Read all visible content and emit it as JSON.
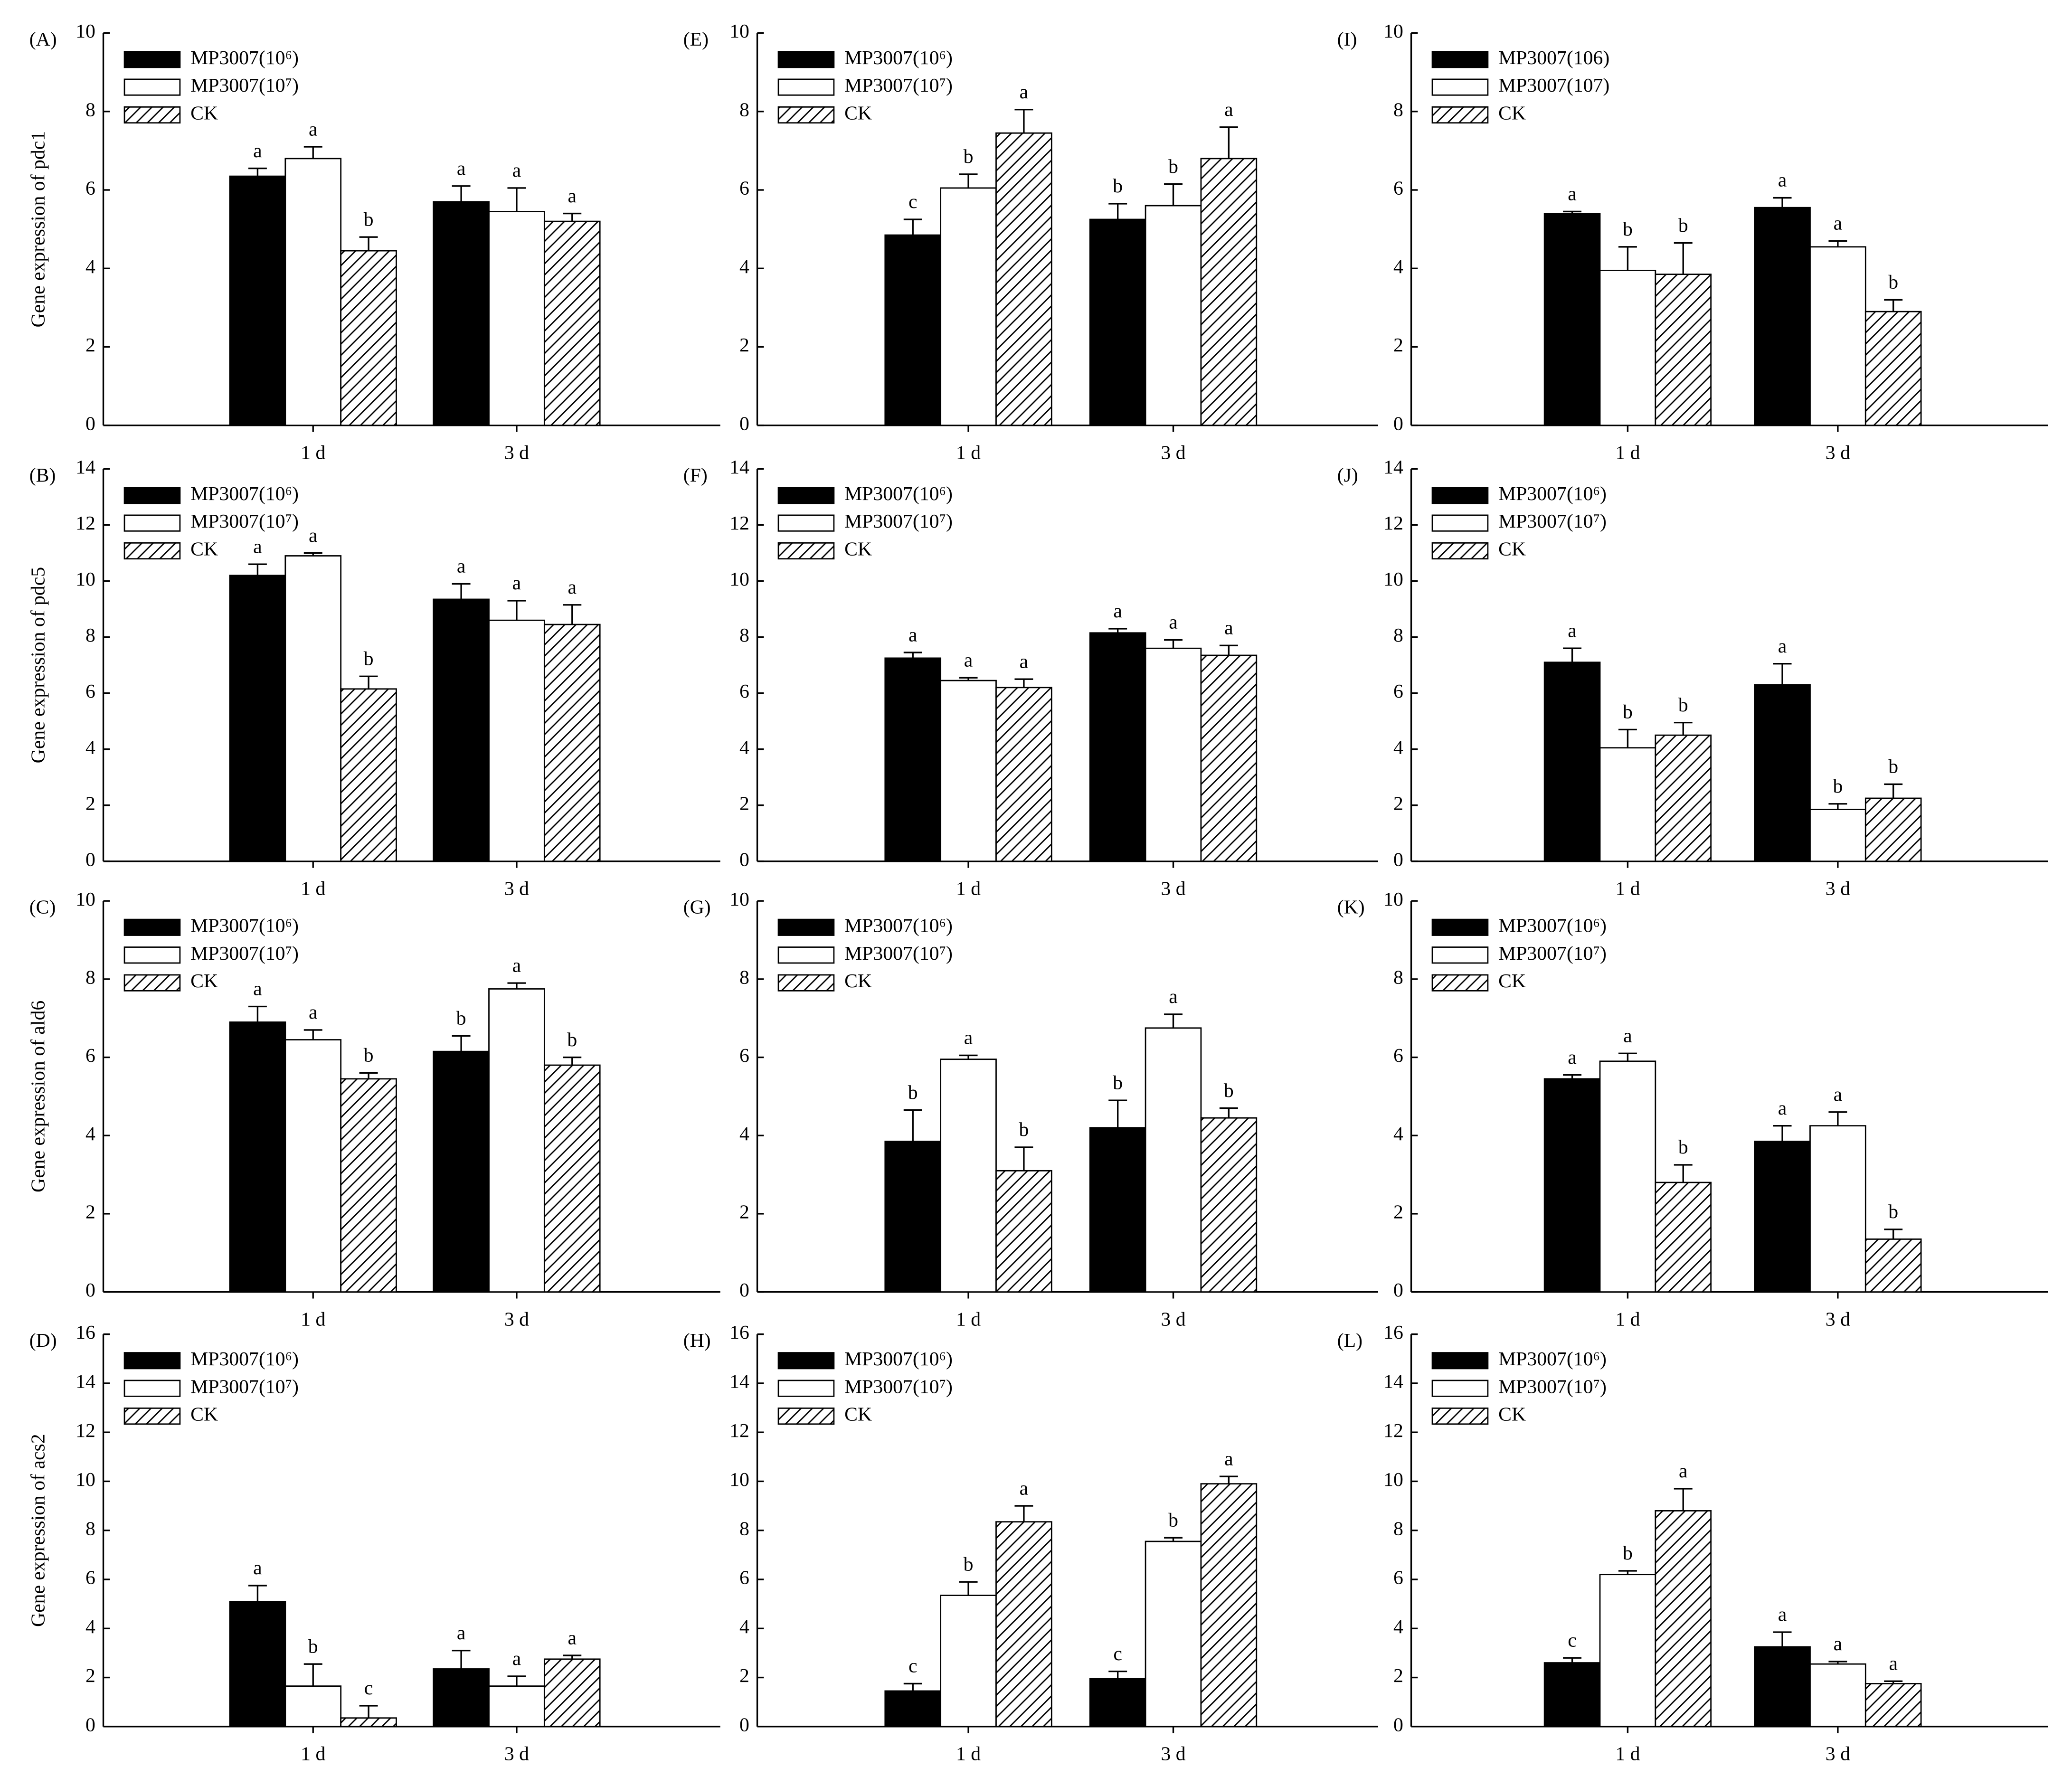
{
  "chart_data": [
    {
      "type": "bar",
      "panel": "(A)",
      "ylabel": "Gene expression of pdc1",
      "categories": [
        "1 d",
        "3 d"
      ],
      "ylim": [
        0,
        10
      ],
      "yticks": [
        0,
        2,
        4,
        6,
        8,
        10
      ],
      "series": [
        {
          "name": "MP3007(10⁶)",
          "color": "#000000",
          "values": [
            6.35,
            5.7
          ],
          "errors": [
            0.2,
            0.4
          ],
          "letters": [
            "a",
            "a"
          ]
        },
        {
          "name": "MP3007(10⁷)",
          "color": "#ffffff",
          "values": [
            6.8,
            5.45
          ],
          "errors": [
            0.3,
            0.6
          ],
          "letters": [
            "a",
            "a"
          ]
        },
        {
          "name": "CK",
          "color": "#ffffff",
          "pattern": "hatch",
          "values": [
            4.45,
            5.2
          ],
          "errors": [
            0.35,
            0.2
          ],
          "letters": [
            "b",
            "a"
          ]
        }
      ]
    },
    {
      "type": "bar",
      "panel": "(E)",
      "categories": [
        "1 d",
        "3 d"
      ],
      "ylim": [
        0,
        10
      ],
      "yticks": [
        0,
        2,
        4,
        6,
        8,
        10
      ],
      "series": [
        {
          "name": "MP3007(10⁶)",
          "color": "#000000",
          "values": [
            4.85,
            5.25
          ],
          "errors": [
            0.4,
            0.4
          ],
          "letters": [
            "c",
            "b"
          ]
        },
        {
          "name": "MP3007(10⁷)",
          "color": "#ffffff",
          "values": [
            6.05,
            5.6
          ],
          "errors": [
            0.35,
            0.55
          ],
          "letters": [
            "b",
            "b"
          ]
        },
        {
          "name": "CK",
          "color": "#ffffff",
          "pattern": "hatch",
          "values": [
            7.45,
            6.8
          ],
          "errors": [
            0.6,
            0.8
          ],
          "letters": [
            "a",
            "a"
          ]
        }
      ]
    },
    {
      "type": "bar",
      "panel": "(I)",
      "categories": [
        "1 d",
        "3 d"
      ],
      "ylim": [
        0,
        10
      ],
      "yticks": [
        0,
        2,
        4,
        6,
        8,
        10
      ],
      "series": [
        {
          "name": "MP3007(106)",
          "color": "#000000",
          "values": [
            5.4,
            5.55
          ],
          "errors": [
            0.05,
            0.25
          ],
          "letters": [
            "a",
            "a"
          ]
        },
        {
          "name": "MP3007(107)",
          "color": "#ffffff",
          "values": [
            3.95,
            4.55
          ],
          "errors": [
            0.6,
            0.15
          ],
          "letters": [
            "b",
            "a"
          ]
        },
        {
          "name": "CK",
          "color": "#ffffff",
          "pattern": "hatch",
          "values": [
            3.85,
            2.9
          ],
          "errors": [
            0.8,
            0.3
          ],
          "letters": [
            "b",
            "b"
          ]
        }
      ]
    },
    {
      "type": "bar",
      "panel": "(B)",
      "ylabel": "Gene expression of pdc5",
      "categories": [
        "1 d",
        "3 d"
      ],
      "ylim": [
        0,
        14
      ],
      "yticks": [
        0,
        2,
        4,
        6,
        8,
        10,
        12,
        14
      ],
      "series": [
        {
          "name": "MP3007(10⁶)",
          "color": "#000000",
          "values": [
            10.2,
            9.35
          ],
          "errors": [
            0.4,
            0.55
          ],
          "letters": [
            "a",
            "a"
          ]
        },
        {
          "name": "MP3007(10⁷)",
          "color": "#ffffff",
          "values": [
            10.9,
            8.6
          ],
          "errors": [
            0.1,
            0.7
          ],
          "letters": [
            "a",
            "a"
          ]
        },
        {
          "name": "CK",
          "color": "#ffffff",
          "pattern": "hatch",
          "values": [
            6.15,
            8.45
          ],
          "errors": [
            0.45,
            0.7
          ],
          "letters": [
            "b",
            "a"
          ]
        }
      ]
    },
    {
      "type": "bar",
      "panel": "(F)",
      "categories": [
        "1 d",
        "3 d"
      ],
      "ylim": [
        0,
        14
      ],
      "yticks": [
        0,
        2,
        4,
        6,
        8,
        10,
        12,
        14
      ],
      "series": [
        {
          "name": "MP3007(10⁶)",
          "color": "#000000",
          "values": [
            7.25,
            8.15
          ],
          "errors": [
            0.2,
            0.15
          ],
          "letters": [
            "a",
            "a"
          ]
        },
        {
          "name": "MP3007(10⁷)",
          "color": "#ffffff",
          "values": [
            6.45,
            7.6
          ],
          "errors": [
            0.1,
            0.3
          ],
          "letters": [
            "a",
            "a"
          ]
        },
        {
          "name": "CK",
          "color": "#ffffff",
          "pattern": "hatch",
          "values": [
            6.2,
            7.35
          ],
          "errors": [
            0.3,
            0.35
          ],
          "letters": [
            "a",
            "a"
          ]
        }
      ]
    },
    {
      "type": "bar",
      "panel": "(J)",
      "categories": [
        "1 d",
        "3 d"
      ],
      "ylim": [
        0,
        14
      ],
      "yticks": [
        0,
        2,
        4,
        6,
        8,
        10,
        12,
        14
      ],
      "series": [
        {
          "name": "MP3007(10⁶)",
          "color": "#000000",
          "values": [
            7.1,
            6.3
          ],
          "errors": [
            0.5,
            0.75
          ],
          "letters": [
            "a",
            "a"
          ]
        },
        {
          "name": "MP3007(10⁷)",
          "color": "#ffffff",
          "values": [
            4.05,
            1.85
          ],
          "errors": [
            0.65,
            0.2
          ],
          "letters": [
            "b",
            "b"
          ]
        },
        {
          "name": "CK",
          "color": "#ffffff",
          "pattern": "hatch",
          "values": [
            4.5,
            2.25
          ],
          "errors": [
            0.45,
            0.5
          ],
          "letters": [
            "b",
            "b"
          ]
        }
      ]
    },
    {
      "type": "bar",
      "panel": "(C)",
      "ylabel": "Gene expression of ald6",
      "categories": [
        "1 d",
        "3 d"
      ],
      "ylim": [
        0,
        10
      ],
      "yticks": [
        0,
        2,
        4,
        6,
        8,
        10
      ],
      "series": [
        {
          "name": "MP3007(10⁶)",
          "color": "#000000",
          "values": [
            6.9,
            6.15
          ],
          "errors": [
            0.4,
            0.4
          ],
          "letters": [
            "a",
            "b"
          ]
        },
        {
          "name": "MP3007(10⁷)",
          "color": "#ffffff",
          "values": [
            6.45,
            7.75
          ],
          "errors": [
            0.25,
            0.15
          ],
          "letters": [
            "a",
            "a"
          ]
        },
        {
          "name": "CK",
          "color": "#ffffff",
          "pattern": "hatch",
          "values": [
            5.45,
            5.8
          ],
          "errors": [
            0.15,
            0.2
          ],
          "letters": [
            "b",
            "b"
          ]
        }
      ]
    },
    {
      "type": "bar",
      "panel": "(G)",
      "categories": [
        "1 d",
        "3 d"
      ],
      "ylim": [
        0,
        10
      ],
      "yticks": [
        0,
        2,
        4,
        6,
        8,
        10
      ],
      "series": [
        {
          "name": "MP3007(10⁶)",
          "color": "#000000",
          "values": [
            3.85,
            4.2
          ],
          "errors": [
            0.8,
            0.7
          ],
          "letters": [
            "b",
            "b"
          ]
        },
        {
          "name": "MP3007(10⁷)",
          "color": "#ffffff",
          "values": [
            5.95,
            6.75
          ],
          "errors": [
            0.1,
            0.35
          ],
          "letters": [
            "a",
            "a"
          ]
        },
        {
          "name": "CK",
          "color": "#ffffff",
          "pattern": "hatch",
          "values": [
            3.1,
            4.45
          ],
          "errors": [
            0.6,
            0.25
          ],
          "letters": [
            "b",
            "b"
          ]
        }
      ]
    },
    {
      "type": "bar",
      "panel": "(K)",
      "categories": [
        "1 d",
        "3 d"
      ],
      "ylim": [
        0,
        10
      ],
      "yticks": [
        0,
        2,
        4,
        6,
        8,
        10
      ],
      "series": [
        {
          "name": "MP3007(10⁶)",
          "color": "#000000",
          "values": [
            5.45,
            3.85
          ],
          "errors": [
            0.1,
            0.4
          ],
          "letters": [
            "a",
            "a"
          ]
        },
        {
          "name": "MP3007(10⁷)",
          "color": "#ffffff",
          "values": [
            5.9,
            4.25
          ],
          "errors": [
            0.2,
            0.35
          ],
          "letters": [
            "a",
            "a"
          ]
        },
        {
          "name": "CK",
          "color": "#ffffff",
          "pattern": "hatch",
          "values": [
            2.8,
            1.35
          ],
          "errors": [
            0.45,
            0.25
          ],
          "letters": [
            "b",
            "b"
          ]
        }
      ]
    },
    {
      "type": "bar",
      "panel": "(D)",
      "ylabel": "Gene expression of acs2",
      "categories": [
        "1 d",
        "3 d"
      ],
      "ylim": [
        0,
        16
      ],
      "yticks": [
        0,
        2,
        4,
        6,
        8,
        10,
        12,
        14,
        16
      ],
      "series": [
        {
          "name": "MP3007(10⁶)",
          "color": "#000000",
          "values": [
            5.1,
            2.35
          ],
          "errors": [
            0.65,
            0.75
          ],
          "letters": [
            "a",
            "a"
          ]
        },
        {
          "name": "MP3007(10⁷)",
          "color": "#ffffff",
          "values": [
            1.65,
            1.65
          ],
          "errors": [
            0.9,
            0.4
          ],
          "letters": [
            "b",
            "a"
          ]
        },
        {
          "name": "CK",
          "color": "#ffffff",
          "pattern": "hatch",
          "values": [
            0.35,
            2.75
          ],
          "errors": [
            0.5,
            0.15
          ],
          "letters": [
            "c",
            "a"
          ]
        }
      ]
    },
    {
      "type": "bar",
      "panel": "(H)",
      "categories": [
        "1 d",
        "3 d"
      ],
      "ylim": [
        0,
        16
      ],
      "yticks": [
        0,
        2,
        4,
        6,
        8,
        10,
        12,
        14,
        16
      ],
      "series": [
        {
          "name": "MP3007(10⁶)",
          "color": "#000000",
          "values": [
            1.45,
            1.95
          ],
          "errors": [
            0.3,
            0.3
          ],
          "letters": [
            "c",
            "c"
          ]
        },
        {
          "name": "MP3007(10⁷)",
          "color": "#ffffff",
          "values": [
            5.35,
            7.55
          ],
          "errors": [
            0.55,
            0.15
          ],
          "letters": [
            "b",
            "b"
          ]
        },
        {
          "name": "CK",
          "color": "#ffffff",
          "pattern": "hatch",
          "values": [
            8.35,
            9.9
          ],
          "errors": [
            0.65,
            0.3
          ],
          "letters": [
            "a",
            "a"
          ]
        }
      ]
    },
    {
      "type": "bar",
      "panel": "(L)",
      "categories": [
        "1 d",
        "3 d"
      ],
      "ylim": [
        0,
        16
      ],
      "yticks": [
        0,
        2,
        4,
        6,
        8,
        10,
        12,
        14,
        16
      ],
      "series": [
        {
          "name": "MP3007(10⁶)",
          "color": "#000000",
          "values": [
            2.6,
            3.25
          ],
          "errors": [
            0.2,
            0.6
          ],
          "letters": [
            "c",
            "a"
          ]
        },
        {
          "name": "MP3007(10⁷)",
          "color": "#ffffff",
          "values": [
            6.2,
            2.55
          ],
          "errors": [
            0.15,
            0.1
          ],
          "letters": [
            "b",
            "a"
          ]
        },
        {
          "name": "CK",
          "color": "#ffffff",
          "pattern": "hatch",
          "values": [
            8.8,
            1.75
          ],
          "errors": [
            0.9,
            0.1
          ],
          "letters": [
            "a",
            "a"
          ]
        }
      ]
    }
  ]
}
